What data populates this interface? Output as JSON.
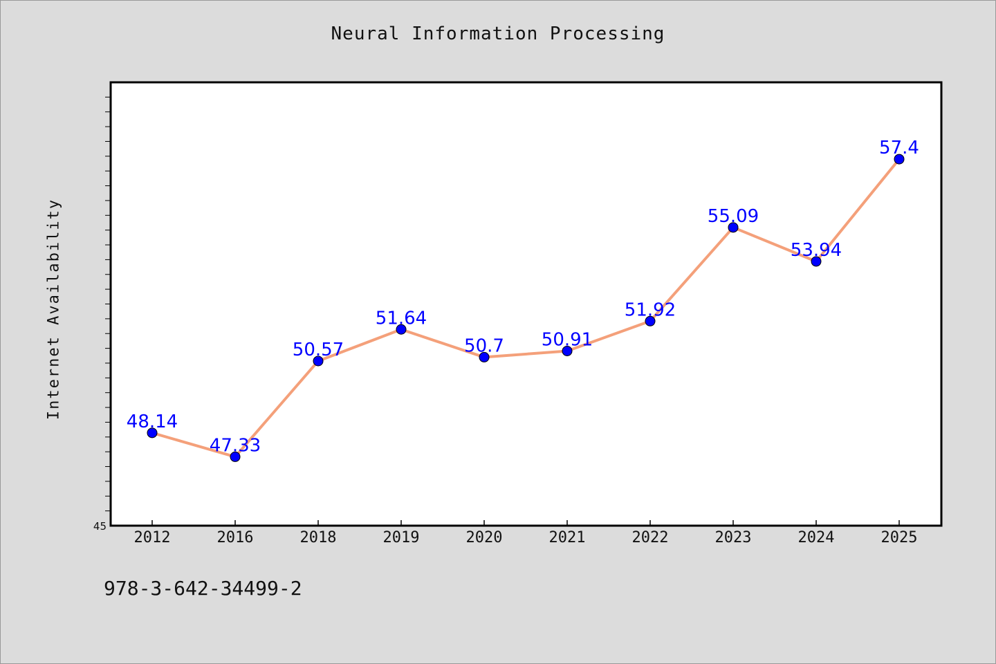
{
  "chart_data": {
    "type": "line",
    "title": "Neural Information Processing",
    "xlabel": "",
    "ylabel": "Internet Availability",
    "categories": [
      "2012",
      "2016",
      "2018",
      "2019",
      "2020",
      "2021",
      "2022",
      "2023",
      "2024",
      "2025"
    ],
    "series": [
      {
        "values": [
          48.14,
          47.33,
          50.57,
          51.64,
          50.7,
          50.91,
          51.92,
          55.09,
          53.94,
          57.4
        ],
        "data_labels": [
          "48.14",
          "47.33",
          "50.57",
          "51.64",
          "50.7",
          "50.91",
          "51.92",
          "55.09",
          "53.94",
          "57.4"
        ],
        "line_color": "#f4a07a",
        "marker_color": "#0000ff",
        "label_color": "#0000ff"
      }
    ],
    "ylim": [
      45,
      60
    ],
    "y_tick_labels": [
      "45"
    ],
    "grid": false,
    "legend": "none"
  },
  "footer": {
    "isbn": "978-3-642-34499-2"
  }
}
